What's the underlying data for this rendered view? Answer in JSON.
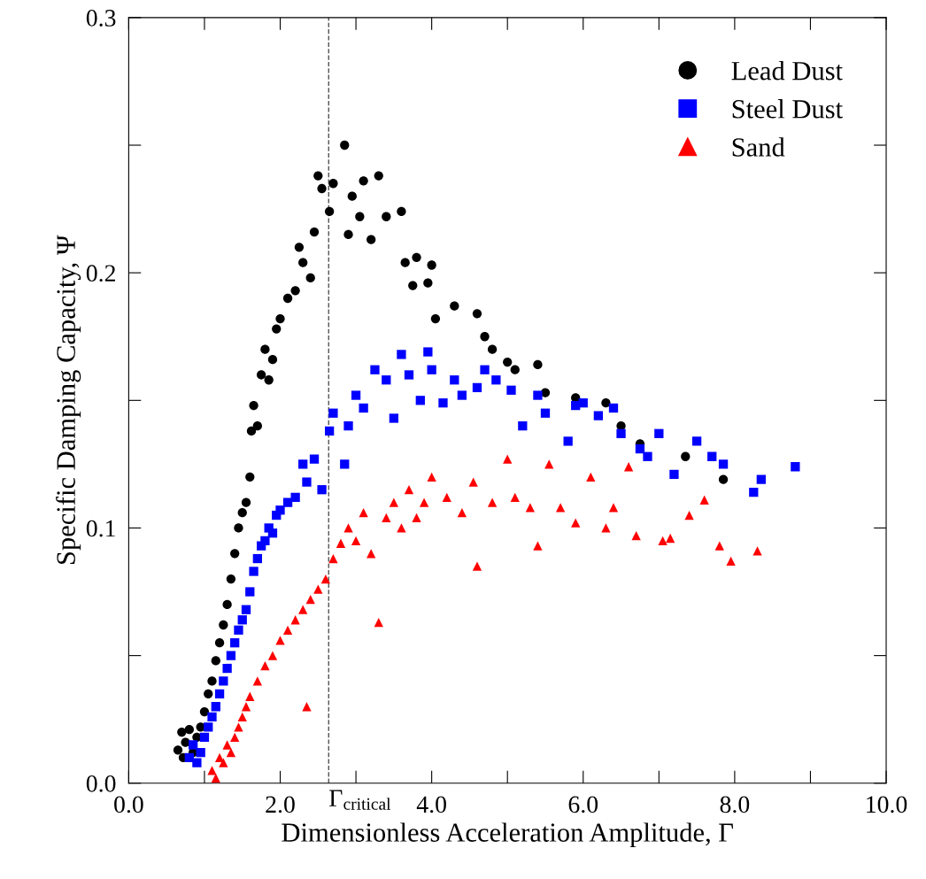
{
  "chart_data": {
    "type": "scatter",
    "xlabel": "Dimensionless Acceleration Amplitude, Γ",
    "ylabel": "Specific Damping Capacity, Ψ",
    "xlim": [
      0,
      10
    ],
    "ylim": [
      0,
      0.3
    ],
    "xticks": [
      {
        "value": 0,
        "label": "0.0"
      },
      {
        "value": 1,
        "label": null
      },
      {
        "value": 2,
        "label": "2.0"
      },
      {
        "value": 3,
        "label": null
      },
      {
        "value": 4,
        "label": "4.0"
      },
      {
        "value": 5,
        "label": null
      },
      {
        "value": 6,
        "label": "6.0"
      },
      {
        "value": 7,
        "label": null
      },
      {
        "value": 8,
        "label": "8.0"
      },
      {
        "value": 9,
        "label": null
      },
      {
        "value": 10,
        "label": "10.0"
      }
    ],
    "yticks": [
      {
        "value": 0,
        "label": "0.0"
      },
      {
        "value": 0.05,
        "label": null
      },
      {
        "value": 0.1,
        "label": "0.1"
      },
      {
        "value": 0.15,
        "label": null
      },
      {
        "value": 0.2,
        "label": "0.2"
      },
      {
        "value": 0.25,
        "label": null
      },
      {
        "value": 0.3,
        "label": "0.3"
      }
    ],
    "grid": false,
    "legend": "top right",
    "ref_lines": [
      {
        "axis": "x",
        "value": 2.64,
        "label": "Γ$_{critical}$",
        "color": "#555555",
        "line_style": "dashed"
      }
    ],
    "series": [
      {
        "name": "Lead Dust",
        "color": "#000000",
        "marker": "circle",
        "x": [
          0.65,
          0.7,
          0.72,
          0.75,
          0.8,
          0.85,
          0.9,
          0.95,
          1.0,
          1.05,
          1.1,
          1.15,
          1.2,
          1.25,
          1.3,
          1.35,
          1.4,
          1.45,
          1.5,
          1.55,
          1.6,
          1.62,
          1.65,
          1.7,
          1.75,
          1.8,
          1.85,
          1.9,
          1.95,
          2.0,
          2.1,
          2.2,
          2.25,
          2.3,
          2.4,
          2.45,
          2.5,
          2.55,
          2.65,
          2.7,
          2.85,
          2.9,
          2.95,
          3.05,
          3.1,
          3.2,
          3.3,
          3.4,
          3.6,
          3.65,
          3.75,
          3.8,
          3.95,
          4.0,
          4.05,
          4.3,
          4.6,
          4.7,
          4.8,
          5.0,
          5.1,
          5.4,
          5.5,
          5.9,
          6.3,
          6.5,
          6.75,
          7.35,
          7.85
        ],
        "values": [
          0.013,
          0.02,
          0.01,
          0.016,
          0.021,
          0.012,
          0.018,
          0.022,
          0.028,
          0.035,
          0.04,
          0.048,
          0.055,
          0.062,
          0.07,
          0.08,
          0.09,
          0.1,
          0.106,
          0.11,
          0.12,
          0.138,
          0.148,
          0.14,
          0.16,
          0.17,
          0.158,
          0.166,
          0.178,
          0.182,
          0.19,
          0.193,
          0.21,
          0.204,
          0.198,
          0.216,
          0.238,
          0.233,
          0.224,
          0.235,
          0.25,
          0.215,
          0.23,
          0.222,
          0.236,
          0.213,
          0.238,
          0.222,
          0.224,
          0.204,
          0.195,
          0.206,
          0.196,
          0.203,
          0.182,
          0.187,
          0.184,
          0.175,
          0.17,
          0.165,
          0.162,
          0.164,
          0.153,
          0.151,
          0.149,
          0.14,
          0.133,
          0.128,
          0.119
        ]
      },
      {
        "name": "Steel Dust",
        "color": "#0000ff",
        "marker": "square",
        "x": [
          0.8,
          0.85,
          0.9,
          0.95,
          1.0,
          1.05,
          1.1,
          1.15,
          1.2,
          1.25,
          1.3,
          1.35,
          1.4,
          1.45,
          1.5,
          1.55,
          1.6,
          1.65,
          1.7,
          1.75,
          1.8,
          1.85,
          1.9,
          1.95,
          2.0,
          2.1,
          2.2,
          2.3,
          2.35,
          2.45,
          2.55,
          2.65,
          2.7,
          2.85,
          2.9,
          3.0,
          3.1,
          3.25,
          3.4,
          3.5,
          3.6,
          3.7,
          3.85,
          3.95,
          4.0,
          4.15,
          4.3,
          4.4,
          4.6,
          4.7,
          4.85,
          5.05,
          5.2,
          5.4,
          5.5,
          5.8,
          5.9,
          6.0,
          6.2,
          6.4,
          6.5,
          6.75,
          6.85,
          7.0,
          7.2,
          7.5,
          7.7,
          7.85,
          8.25,
          8.35,
          8.8
        ],
        "values": [
          0.01,
          0.015,
          0.008,
          0.012,
          0.018,
          0.022,
          0.026,
          0.03,
          0.035,
          0.04,
          0.045,
          0.05,
          0.055,
          0.06,
          0.064,
          0.068,
          0.075,
          0.083,
          0.088,
          0.093,
          0.095,
          0.1,
          0.098,
          0.105,
          0.107,
          0.11,
          0.112,
          0.125,
          0.118,
          0.127,
          0.115,
          0.138,
          0.145,
          0.125,
          0.14,
          0.152,
          0.147,
          0.162,
          0.158,
          0.143,
          0.168,
          0.16,
          0.15,
          0.169,
          0.162,
          0.149,
          0.158,
          0.152,
          0.155,
          0.162,
          0.158,
          0.154,
          0.14,
          0.152,
          0.145,
          0.134,
          0.148,
          0.149,
          0.144,
          0.147,
          0.137,
          0.131,
          0.128,
          0.137,
          0.121,
          0.134,
          0.128,
          0.125,
          0.114,
          0.119,
          0.124
        ]
      },
      {
        "name": "Sand",
        "color": "#ff0000",
        "marker": "triangle",
        "x": [
          1.1,
          1.15,
          1.2,
          1.25,
          1.3,
          1.35,
          1.4,
          1.45,
          1.5,
          1.55,
          1.6,
          1.7,
          1.8,
          1.9,
          2.0,
          2.1,
          2.2,
          2.3,
          2.35,
          2.4,
          2.5,
          2.6,
          2.7,
          2.8,
          2.9,
          3.0,
          3.1,
          3.2,
          3.3,
          3.4,
          3.5,
          3.6,
          3.7,
          3.8,
          3.9,
          4.0,
          4.2,
          4.4,
          4.55,
          4.6,
          4.8,
          5.0,
          5.1,
          5.3,
          5.4,
          5.55,
          5.7,
          5.9,
          6.1,
          6.3,
          6.4,
          6.6,
          6.7,
          7.05,
          7.15,
          7.4,
          7.6,
          7.8,
          7.95,
          8.3
        ],
        "values": [
          0.005,
          0.002,
          0.01,
          0.008,
          0.015,
          0.012,
          0.018,
          0.022,
          0.026,
          0.03,
          0.034,
          0.04,
          0.046,
          0.05,
          0.056,
          0.06,
          0.064,
          0.068,
          0.03,
          0.072,
          0.076,
          0.08,
          0.088,
          0.094,
          0.1,
          0.095,
          0.106,
          0.09,
          0.063,
          0.104,
          0.11,
          0.1,
          0.115,
          0.104,
          0.11,
          0.12,
          0.112,
          0.106,
          0.118,
          0.085,
          0.11,
          0.127,
          0.112,
          0.108,
          0.093,
          0.125,
          0.108,
          0.102,
          0.12,
          0.1,
          0.108,
          0.124,
          0.097,
          0.095,
          0.096,
          0.105,
          0.111,
          0.093,
          0.087,
          0.091
        ]
      }
    ]
  }
}
